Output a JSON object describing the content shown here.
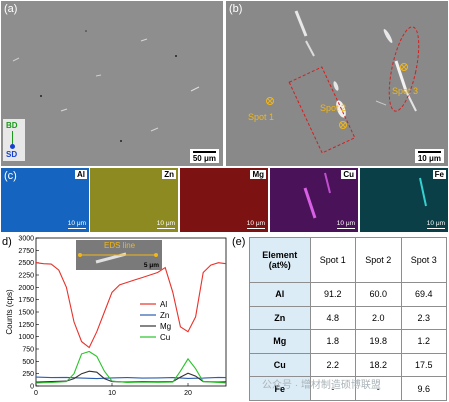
{
  "panels": {
    "a": {
      "label": "(a)",
      "scale": "50 μm",
      "axis_bd": "BD",
      "axis_sd": "SD"
    },
    "b": {
      "label": "(b)",
      "scale": "10 μm",
      "spots": [
        "Spot 1",
        "Spot 2",
        "Spot 3"
      ]
    },
    "c": {
      "label": "(c)",
      "maps": [
        {
          "element": "Al",
          "scale": "10 μm",
          "color": "#1565c0"
        },
        {
          "element": "Zn",
          "scale": "10 μm",
          "color": "#8d8a22"
        },
        {
          "element": "Mg",
          "scale": "10 μm",
          "color": "#8b1414"
        },
        {
          "element": "Cu",
          "scale": "10 μm",
          "color": "#5a1a6b"
        },
        {
          "element": "Fe",
          "scale": "10 μm",
          "color": "#0b4b55"
        }
      ]
    },
    "d": {
      "label": "d)",
      "inset_label": "EDS line",
      "inset_scale": "5 μm"
    },
    "e": {
      "label": "(e)"
    }
  },
  "chart_data": {
    "type": "line",
    "xlabel": "",
    "ylabel": "Counts (cps)",
    "xlim": [
      0,
      25
    ],
    "ylim": [
      0,
      3000
    ],
    "xticks": [
      "0",
      "10",
      "20"
    ],
    "yticks": [
      "0",
      "250",
      "500",
      "750",
      "1000",
      "1250",
      "1500",
      "1750",
      "2000",
      "2250",
      "2500",
      "2750",
      "3000"
    ],
    "legend_position": "center-right",
    "series": [
      {
        "name": "Al",
        "color": "#e8322b",
        "x": [
          0,
          1,
          2,
          3,
          4,
          5,
          6,
          7,
          8,
          9,
          10,
          11,
          12,
          13,
          14,
          15,
          16,
          17,
          18,
          19,
          20,
          21,
          22,
          23,
          24,
          25
        ],
        "y": [
          2500,
          2480,
          2470,
          2350,
          2000,
          1300,
          900,
          780,
          1100,
          1500,
          1900,
          2050,
          2100,
          2150,
          2200,
          2250,
          2300,
          2400,
          1900,
          1200,
          1100,
          1400,
          2300,
          2450,
          2500,
          2480
        ]
      },
      {
        "name": "Zn",
        "color": "#2a5db0",
        "x": [
          0,
          2,
          4,
          6,
          8,
          10,
          12,
          14,
          16,
          18,
          20,
          22,
          24,
          25
        ],
        "y": [
          180,
          170,
          175,
          160,
          150,
          165,
          170,
          160,
          165,
          170,
          155,
          160,
          175,
          170
        ]
      },
      {
        "name": "Mg",
        "color": "#333333",
        "x": [
          0,
          2,
          4,
          5,
          6,
          7,
          8,
          9,
          10,
          12,
          14,
          16,
          18,
          19,
          20,
          21,
          22,
          24,
          25
        ],
        "y": [
          80,
          90,
          100,
          150,
          250,
          300,
          280,
          150,
          90,
          80,
          90,
          85,
          90,
          180,
          260,
          200,
          90,
          80,
          85
        ]
      },
      {
        "name": "Cu",
        "color": "#28c428",
        "x": [
          0,
          2,
          4,
          5,
          6,
          7,
          8,
          9,
          10,
          12,
          14,
          16,
          18,
          19,
          20,
          21,
          22,
          24,
          25
        ],
        "y": [
          60,
          70,
          90,
          250,
          650,
          700,
          600,
          300,
          100,
          70,
          80,
          75,
          80,
          300,
          550,
          350,
          90,
          70,
          60
        ]
      }
    ]
  },
  "table": {
    "header": [
      "Element\n(at%)",
      "Spot 1",
      "Spot 2",
      "Spot 3"
    ],
    "header_element": "Element",
    "header_unit": "(at%)",
    "rows": [
      {
        "element": "Al",
        "values": [
          "91.2",
          "60.0",
          "69.4"
        ]
      },
      {
        "element": "Zn",
        "values": [
          "4.8",
          "2.0",
          "2.3"
        ]
      },
      {
        "element": "Mg",
        "values": [
          "1.8",
          "19.8",
          "1.2"
        ]
      },
      {
        "element": "Cu",
        "values": [
          "2.2",
          "18.2",
          "17.5"
        ]
      },
      {
        "element": "Fe",
        "values": [
          "-",
          "-",
          "9.6"
        ]
      }
    ]
  },
  "watermark": "公众号 · 增材制造硕博联盟"
}
